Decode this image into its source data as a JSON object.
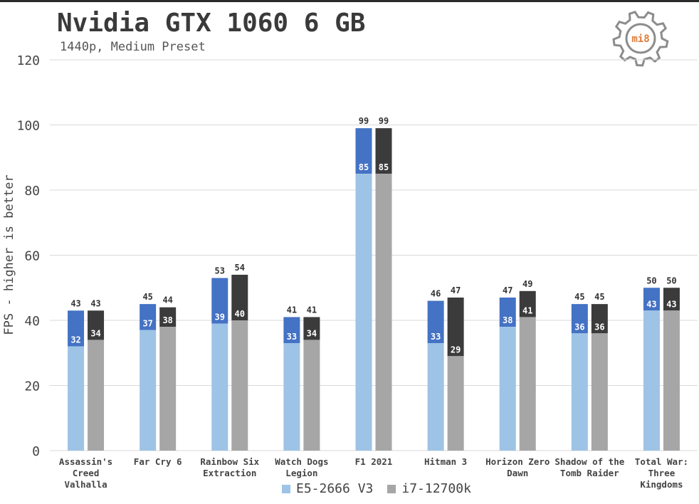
{
  "header": {
    "title": "Nvidia GTX 1060 6 GB",
    "subtitle": "1440p, Medium Preset",
    "logo_text": "mi8"
  },
  "chart_data": {
    "type": "bar",
    "stacked": true,
    "title": "Nvidia GTX 1060 6 GB",
    "subtitle": "1440p, Medium Preset",
    "ylabel": "FPS - higher is better",
    "xlabel": "",
    "ylim": [
      0,
      120
    ],
    "yticks": [
      0,
      20,
      40,
      60,
      80,
      100,
      120
    ],
    "grid": true,
    "legend_position": "bottom",
    "categories": [
      "Assassin's Creed Valhalla",
      "Far Cry 6",
      "Rainbow Six Extraction",
      "Watch Dogs Legion",
      "F1 2021",
      "Hitman 3",
      "Horizon Zero Dawn",
      "Shadow of the Tomb Raider",
      "Total War: Three Kingdoms"
    ],
    "category_lines": [
      [
        "Assassin's",
        "Creed",
        "Valhalla"
      ],
      [
        "Far Cry 6"
      ],
      [
        "Rainbow Six",
        "Extraction"
      ],
      [
        "Watch Dogs",
        "Legion"
      ],
      [
        "F1 2021"
      ],
      [
        "Hitman 3"
      ],
      [
        "Horizon Zero",
        "Dawn"
      ],
      [
        "Shadow of the",
        "Tomb Raider"
      ],
      [
        "Total War:",
        "Three",
        "Kingdoms"
      ]
    ],
    "series": [
      {
        "name": "E5-2666 V3",
        "min_fps": [
          32,
          37,
          39,
          33,
          85,
          33,
          38,
          36,
          43
        ],
        "avg_fps": [
          43,
          45,
          53,
          41,
          99,
          46,
          47,
          45,
          50
        ],
        "color_min": "#9dc3e6",
        "color_avg": "#4472c4"
      },
      {
        "name": "i7-12700k",
        "min_fps": [
          34,
          38,
          40,
          34,
          85,
          29,
          41,
          36,
          43
        ],
        "avg_fps": [
          43,
          44,
          54,
          41,
          99,
          47,
          49,
          45,
          50
        ],
        "color_min": "#a6a6a6",
        "color_avg": "#3b3b3b"
      }
    ]
  },
  "legend": {
    "items": [
      {
        "label": "E5-2666 V3",
        "color": "#9dc3e6"
      },
      {
        "label": "i7-12700k",
        "color": "#a6a6a6"
      }
    ]
  },
  "colors": {
    "title": "#3a3a3a",
    "grid": "#d9d9d9",
    "axis_text": "#444444",
    "logo_gear": "#8c8c8c",
    "logo_text": "#e07b39"
  }
}
